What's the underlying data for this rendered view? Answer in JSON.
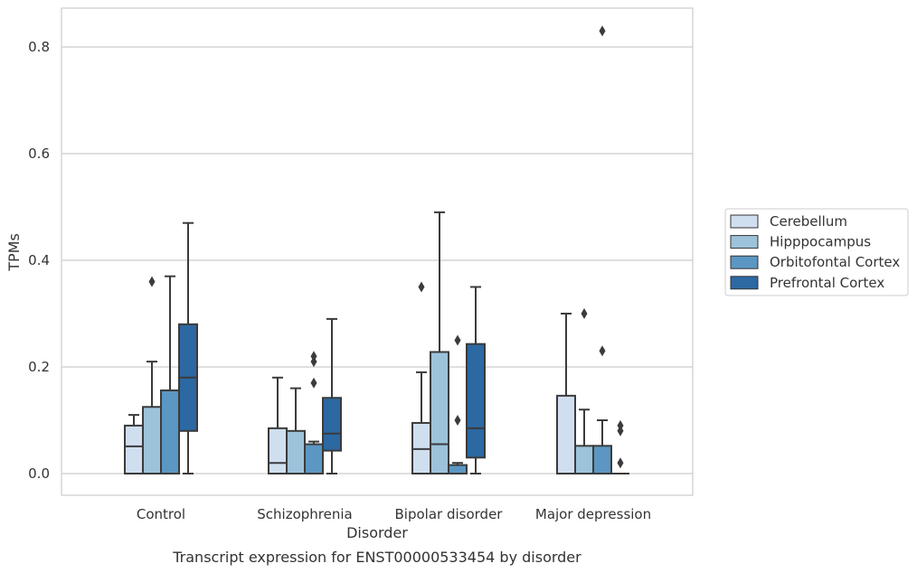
{
  "chart_data": {
    "type": "box",
    "title": "",
    "caption": "Transcript expression for ENST00000533454 by disorder",
    "xlabel": "Disorder",
    "ylabel": "TPMs",
    "ylim": [
      -0.04,
      0.872
    ],
    "yticks": [
      0.0,
      0.2,
      0.4,
      0.6,
      0.8
    ],
    "ytick_labels": [
      "0.0",
      "0.2",
      "0.4",
      "0.6",
      "0.8"
    ],
    "grid": "horizontal",
    "legend_position": "right",
    "categories": [
      "Control",
      "Schizophrenia",
      "Bipolar disorder",
      "Major depression"
    ],
    "series": [
      {
        "name": "Cerebellum",
        "color": "#d0dff0",
        "boxes": [
          {
            "min": 0.0,
            "q1": 0.0,
            "median": 0.051,
            "q3": 0.09,
            "max": 0.11,
            "outliers": []
          },
          {
            "min": 0.0,
            "q1": 0.0,
            "median": 0.02,
            "q3": 0.085,
            "max": 0.18,
            "outliers": []
          },
          {
            "min": 0.0,
            "q1": 0.0,
            "median": 0.046,
            "q3": 0.095,
            "max": 0.19,
            "outliers": [
              0.35
            ]
          },
          {
            "min": 0.0,
            "q1": 0.0,
            "median": 0.0,
            "q3": 0.146,
            "max": 0.3,
            "outliers": []
          }
        ]
      },
      {
        "name": "Hipppocampus",
        "color": "#9cc3da",
        "boxes": [
          {
            "min": 0.0,
            "q1": 0.0,
            "median": 0.0,
            "q3": 0.125,
            "max": 0.21,
            "outliers": [
              0.36
            ]
          },
          {
            "min": 0.0,
            "q1": 0.0,
            "median": 0.0,
            "q3": 0.08,
            "max": 0.16,
            "outliers": []
          },
          {
            "min": 0.0,
            "q1": 0.0,
            "median": 0.055,
            "q3": 0.228,
            "max": 0.49,
            "outliers": []
          },
          {
            "min": 0.0,
            "q1": 0.0,
            "median": 0.0,
            "q3": 0.052,
            "max": 0.12,
            "outliers": [
              0.3
            ]
          }
        ]
      },
      {
        "name": "Orbitofontal Cortex",
        "color": "#5b97c2",
        "boxes": [
          {
            "min": 0.0,
            "q1": 0.0,
            "median": 0.0,
            "q3": 0.156,
            "max": 0.37,
            "outliers": []
          },
          {
            "min": 0.0,
            "q1": 0.0,
            "median": 0.0,
            "q3": 0.055,
            "max": 0.06,
            "outliers": [
              0.17,
              0.21,
              0.22
            ]
          },
          {
            "min": 0.0,
            "q1": 0.0,
            "median": 0.0,
            "q3": 0.016,
            "max": 0.02,
            "outliers": [
              0.1,
              0.25
            ]
          },
          {
            "min": 0.0,
            "q1": 0.0,
            "median": 0.0,
            "q3": 0.052,
            "max": 0.1,
            "outliers": [
              0.23,
              0.83
            ]
          }
        ]
      },
      {
        "name": "Prefrontal Cortex",
        "color": "#2c68a2",
        "boxes": [
          {
            "min": 0.0,
            "q1": 0.08,
            "median": 0.18,
            "q3": 0.28,
            "max": 0.47,
            "outliers": []
          },
          {
            "min": 0.0,
            "q1": 0.043,
            "median": 0.075,
            "q3": 0.142,
            "max": 0.29,
            "outliers": []
          },
          {
            "min": 0.0,
            "q1": 0.03,
            "median": 0.085,
            "q3": 0.243,
            "max": 0.35,
            "outliers": []
          },
          {
            "min": 0.0,
            "q1": 0.0,
            "median": 0.0,
            "q3": 0.0,
            "max": 0.0,
            "outliers": [
              0.02,
              0.08,
              0.09
            ]
          }
        ]
      }
    ]
  }
}
